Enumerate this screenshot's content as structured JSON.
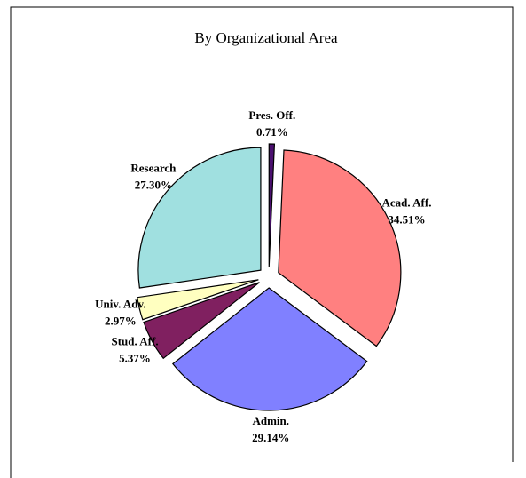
{
  "chart_data": {
    "type": "pie",
    "title": "By Organizational Area",
    "categories": [
      "Pres. Off.",
      "Acad. Aff.",
      "Admin.",
      "Stud. Aff.",
      "Univ. Adv.",
      "Research"
    ],
    "values": [
      0.71,
      34.51,
      29.14,
      5.37,
      2.97,
      27.3
    ],
    "value_labels": [
      "0.71%",
      "34.51%",
      "29.14%",
      "5.37%",
      "2.97%",
      "27.30%"
    ],
    "colors": [
      "#4b1070",
      "#ff8080",
      "#8080ff",
      "#802060",
      "#ffffc0",
      "#a0e0e0"
    ]
  }
}
